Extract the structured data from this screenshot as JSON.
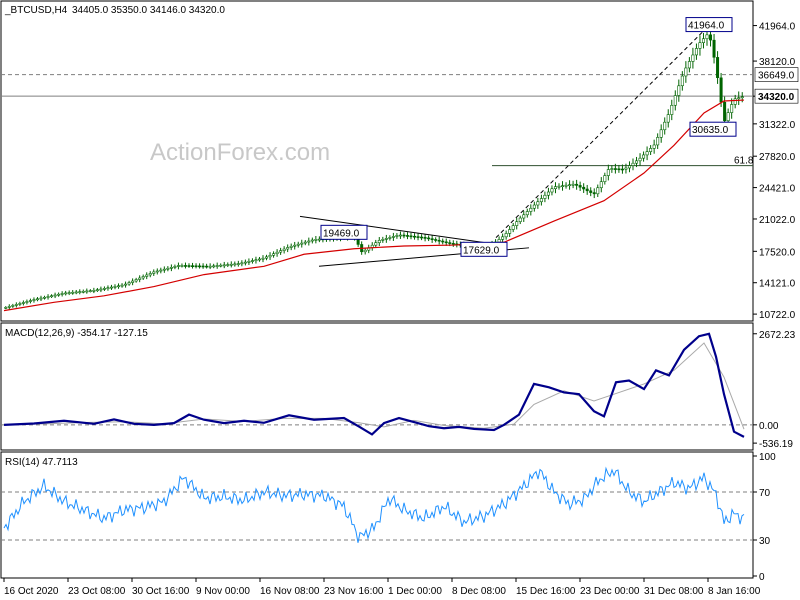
{
  "colors": {
    "background": "#ffffff",
    "candles": "#006400",
    "ema": "#d40000",
    "macd_main": "#00008b",
    "macd_signal": "#a9a9a9",
    "rsi": "#1e90ff",
    "grid": "#7f7f7f",
    "fib": "#2f4f2f"
  },
  "header": {
    "symbol_label": "_BTCUSD,H4",
    "ohlc": "34405.0 35350.0 34146.0 34320.0"
  },
  "watermark": "ActionForex.com",
  "chart_data": [
    {
      "type": "candlestick",
      "panel": "price",
      "title": "_BTCUSD,H4",
      "y_ticks": [
        41964.0,
        38120.0,
        34320.0,
        31322.0,
        27820.0,
        24421.0,
        21022.0,
        17520.0,
        14121.0,
        10722.0
      ],
      "ylim": [
        10300,
        44300
      ],
      "x_tick_labels": [
        "16 Oct 2020",
        "23 Oct 08:00",
        "30 Oct 16:00",
        "9 Nov 00:00",
        "16 Nov 08:00",
        "23 Nov 16:00",
        "1 Dec 00:00",
        "8 Dec 08:00",
        "15 Dec 16:00",
        "23 Dec 00:00",
        "31 Dec 08:00",
        "8 Jan 16:00"
      ],
      "x_range": [
        0,
        740
      ],
      "price_points": [
        [
          0,
          11400
        ],
        [
          30,
          12300
        ],
        [
          60,
          13000
        ],
        [
          90,
          13300
        ],
        [
          120,
          13900
        ],
        [
          150,
          15300
        ],
        [
          175,
          16000
        ],
        [
          205,
          15900
        ],
        [
          235,
          16200
        ],
        [
          260,
          16800
        ],
        [
          285,
          18000
        ],
        [
          310,
          18800
        ],
        [
          335,
          19000
        ],
        [
          350,
          19200
        ],
        [
          358,
          17400
        ],
        [
          375,
          18700
        ],
        [
          395,
          19300
        ],
        [
          420,
          19000
        ],
        [
          445,
          18400
        ],
        [
          470,
          18000
        ],
        [
          480,
          17900
        ],
        [
          490,
          18400
        ],
        [
          500,
          19200
        ],
        [
          515,
          21000
        ],
        [
          535,
          23000
        ],
        [
          550,
          24500
        ],
        [
          570,
          24800
        ],
        [
          590,
          23700
        ],
        [
          605,
          26500
        ],
        [
          620,
          26400
        ],
        [
          635,
          27500
        ],
        [
          650,
          29000
        ],
        [
          665,
          32500
        ],
        [
          680,
          37000
        ],
        [
          695,
          40000
        ],
        [
          705,
          41200
        ],
        [
          712,
          37500
        ],
        [
          720,
          31500
        ],
        [
          730,
          34000
        ],
        [
          740,
          34320
        ]
      ],
      "ema_points": [
        [
          0,
          11100
        ],
        [
          50,
          12000
        ],
        [
          100,
          12700
        ],
        [
          150,
          13700
        ],
        [
          200,
          15000
        ],
        [
          260,
          15900
        ],
        [
          300,
          17200
        ],
        [
          350,
          17800
        ],
        [
          400,
          18100
        ],
        [
          450,
          18200
        ],
        [
          500,
          18500
        ],
        [
          550,
          20800
        ],
        [
          600,
          23000
        ],
        [
          640,
          26000
        ],
        [
          670,
          29000
        ],
        [
          700,
          32500
        ],
        [
          720,
          33800
        ],
        [
          740,
          33900
        ]
      ],
      "hlines": [
        {
          "price": 36649.0,
          "label": "36649.0",
          "style": "dashed"
        },
        {
          "price": 34320.0,
          "label": "34320.0",
          "style": "solid"
        }
      ],
      "fib": {
        "level_label": "61.8",
        "price": 26800,
        "x_start": 488
      },
      "annotations": [
        {
          "label": "41964.0",
          "x": 705,
          "price": 41964
        },
        {
          "label": "19469.0",
          "x": 340,
          "price": 19469
        },
        {
          "label": "17629.0",
          "x": 480,
          "price": 17629
        },
        {
          "label": "30635.0",
          "x": 709,
          "price": 30635
        }
      ],
      "triangle": {
        "upper": [
          [
            296,
            21300
          ],
          [
            485,
            18400
          ]
        ],
        "lower": [
          [
            315,
            15900
          ],
          [
            525,
            17900
          ]
        ]
      },
      "trend_line": [
        [
          492,
          19000
        ],
        [
          705,
          41964
        ]
      ]
    },
    {
      "type": "line",
      "panel": "macd",
      "title": "MACD(12,26,9) -354.17 -127.15",
      "y_ticks": [
        2672.23,
        0.0,
        -536.19
      ],
      "ylim": [
        -650,
        2900
      ],
      "main_points": [
        [
          0,
          0
        ],
        [
          30,
          40
        ],
        [
          60,
          120
        ],
        [
          90,
          30
        ],
        [
          110,
          160
        ],
        [
          130,
          30
        ],
        [
          150,
          0
        ],
        [
          170,
          50
        ],
        [
          185,
          300
        ],
        [
          200,
          150
        ],
        [
          220,
          50
        ],
        [
          240,
          120
        ],
        [
          260,
          60
        ],
        [
          285,
          280
        ],
        [
          310,
          150
        ],
        [
          340,
          200
        ],
        [
          355,
          -50
        ],
        [
          368,
          -280
        ],
        [
          380,
          50
        ],
        [
          395,
          200
        ],
        [
          410,
          80
        ],
        [
          425,
          -40
        ],
        [
          440,
          -100
        ],
        [
          455,
          -60
        ],
        [
          470,
          -120
        ],
        [
          490,
          -150
        ],
        [
          500,
          0
        ],
        [
          515,
          300
        ],
        [
          530,
          1200
        ],
        [
          545,
          1100
        ],
        [
          560,
          950
        ],
        [
          575,
          900
        ],
        [
          590,
          400
        ],
        [
          600,
          250
        ],
        [
          612,
          1250
        ],
        [
          625,
          1300
        ],
        [
          640,
          1050
        ],
        [
          652,
          1600
        ],
        [
          665,
          1450
        ],
        [
          680,
          2200
        ],
        [
          695,
          2600
        ],
        [
          705,
          2672
        ],
        [
          712,
          2000
        ],
        [
          720,
          900
        ],
        [
          730,
          -200
        ],
        [
          740,
          -354
        ]
      ],
      "signal_points": [
        [
          0,
          0
        ],
        [
          40,
          30
        ],
        [
          80,
          70
        ],
        [
          120,
          90
        ],
        [
          160,
          30
        ],
        [
          200,
          170
        ],
        [
          240,
          100
        ],
        [
          280,
          190
        ],
        [
          320,
          190
        ],
        [
          355,
          60
        ],
        [
          380,
          -60
        ],
        [
          410,
          130
        ],
        [
          440,
          -20
        ],
        [
          480,
          -100
        ],
        [
          510,
          20
        ],
        [
          530,
          600
        ],
        [
          560,
          1000
        ],
        [
          590,
          700
        ],
        [
          610,
          900
        ],
        [
          640,
          1200
        ],
        [
          670,
          1600
        ],
        [
          700,
          2400
        ],
        [
          720,
          1400
        ],
        [
          740,
          -127
        ]
      ]
    },
    {
      "type": "line",
      "panel": "rsi",
      "title": "RSI(14) 47.7113",
      "y_ticks": [
        100,
        70,
        30,
        0
      ],
      "ylim": [
        0,
        100
      ],
      "dashed_levels": [
        70,
        30
      ],
      "points": [
        [
          0,
          40
        ],
        [
          20,
          62
        ],
        [
          40,
          75
        ],
        [
          60,
          62
        ],
        [
          80,
          55
        ],
        [
          100,
          48
        ],
        [
          120,
          55
        ],
        [
          140,
          57
        ],
        [
          160,
          62
        ],
        [
          180,
          82
        ],
        [
          200,
          65
        ],
        [
          220,
          66
        ],
        [
          240,
          63
        ],
        [
          260,
          70
        ],
        [
          280,
          67
        ],
        [
          300,
          68
        ],
        [
          320,
          67
        ],
        [
          340,
          58
        ],
        [
          355,
          32
        ],
        [
          370,
          40
        ],
        [
          385,
          65
        ],
        [
          400,
          55
        ],
        [
          420,
          48
        ],
        [
          440,
          58
        ],
        [
          460,
          45
        ],
        [
          480,
          50
        ],
        [
          500,
          60
        ],
        [
          520,
          75
        ],
        [
          535,
          88
        ],
        [
          550,
          70
        ],
        [
          565,
          60
        ],
        [
          580,
          64
        ],
        [
          595,
          80
        ],
        [
          610,
          88
        ],
        [
          625,
          70
        ],
        [
          640,
          62
        ],
        [
          655,
          70
        ],
        [
          670,
          78
        ],
        [
          685,
          73
        ],
        [
          700,
          82
        ],
        [
          712,
          68
        ],
        [
          720,
          45
        ],
        [
          730,
          52
        ],
        [
          740,
          47.7
        ]
      ]
    }
  ]
}
